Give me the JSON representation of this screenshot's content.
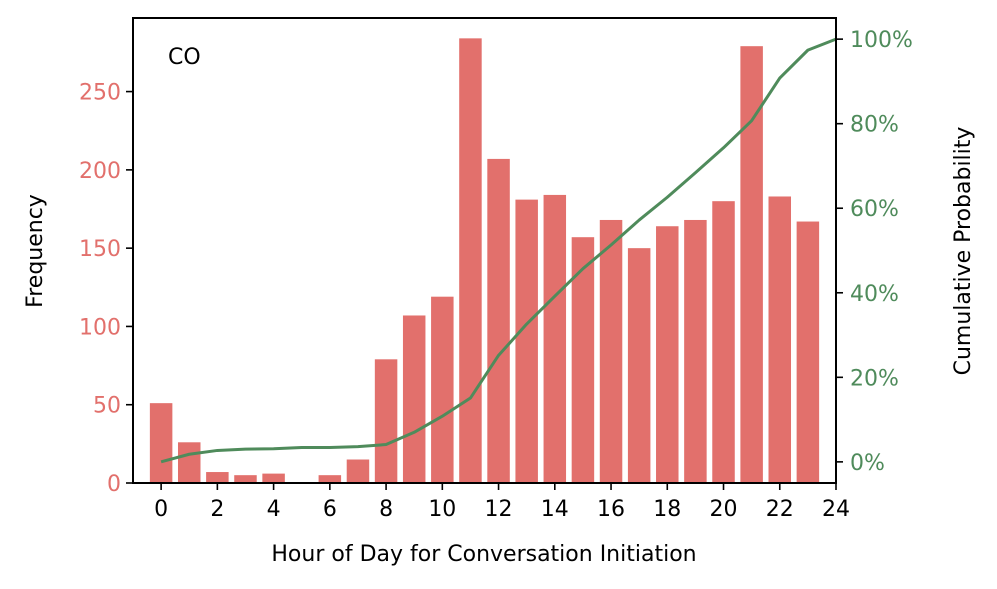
{
  "chart_data": {
    "type": "bar",
    "annotation": "CO",
    "xlabel": "Hour of Day for Conversation Initiation",
    "ylabel": "Frequency",
    "y2label": "Cumulative Probability",
    "xlim": [
      -1,
      24
    ],
    "ylim": [
      0,
      297
    ],
    "y2lim": [
      -0.05,
      1.05
    ],
    "xticks": [
      0,
      2,
      4,
      6,
      8,
      10,
      12,
      14,
      16,
      18,
      20,
      22,
      24
    ],
    "yticks": [
      0,
      50,
      100,
      150,
      200,
      250
    ],
    "y2ticks": [
      0,
      0.2,
      0.4,
      0.6,
      0.8,
      1.0
    ],
    "y2ticklabels": [
      "0%",
      "20%",
      "40%",
      "60%",
      "80%",
      "100%"
    ],
    "grid": false,
    "legend": "none",
    "bars": {
      "name": "Frequency",
      "x": [
        0,
        1,
        2,
        3,
        4,
        5,
        6,
        7,
        8,
        9,
        10,
        11,
        12,
        13,
        14,
        15,
        16,
        17,
        18,
        19,
        20,
        21,
        22,
        23
      ],
      "values": [
        51,
        26,
        7,
        5,
        6,
        0,
        5,
        15,
        79,
        107,
        119,
        284,
        207,
        181,
        184,
        157,
        168,
        150,
        164,
        168,
        180,
        279,
        183,
        167
      ]
    },
    "cumulative": {
      "name": "Cumulative Probability",
      "x": [
        0,
        1,
        2,
        3,
        4,
        5,
        6,
        7,
        8,
        9,
        10,
        11,
        12,
        13,
        14,
        15,
        16,
        17,
        18,
        19,
        20,
        21,
        22,
        23,
        24
      ],
      "values": [
        0.0,
        0.018,
        0.027,
        0.03,
        0.031,
        0.034,
        0.034,
        0.036,
        0.041,
        0.07,
        0.108,
        0.151,
        0.252,
        0.326,
        0.392,
        0.457,
        0.513,
        0.572,
        0.626,
        0.684,
        0.743,
        0.807,
        0.908,
        0.974,
        1.0
      ]
    },
    "colors": {
      "bar": "#e2706c",
      "line": "#4f8b5b",
      "left_axis_text": "#e2706c",
      "right_axis_text": "#4f8b5b",
      "axis": "#000000"
    }
  }
}
